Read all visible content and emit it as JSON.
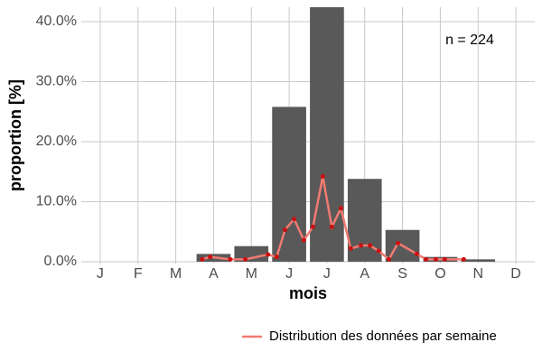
{
  "chart_data": {
    "type": "bar",
    "xlabel": "mois",
    "ylabel": "proportion [%]",
    "annotation": "n = 224",
    "categories": [
      "J",
      "F",
      "M",
      "A",
      "M",
      "J",
      "J",
      "A",
      "S",
      "O",
      "N",
      "D"
    ],
    "values": [
      0,
      0,
      0,
      1.3,
      2.6,
      25.8,
      42.5,
      13.8,
      5.3,
      0.8,
      0.4,
      0
    ],
    "color": "#595959",
    "xlim": [
      0.5,
      12.5
    ],
    "ylim": [
      -0.3,
      42.4
    ],
    "yticks": [
      {
        "value": 0,
        "label": "0.0%"
      },
      {
        "value": 10,
        "label": "10.0%"
      },
      {
        "value": 20,
        "label": "20.0%"
      },
      {
        "value": 30,
        "label": "30.0%"
      },
      {
        "value": 40,
        "label": "40.0%"
      }
    ],
    "grid": true,
    "legend": "bottom-right",
    "line": {
      "type": "line",
      "name": "Distribution des données par semaine",
      "color": "#f07b72",
      "point_color": "#cc1010",
      "x": [
        3.7,
        3.91,
        4.44,
        4.84,
        5.44,
        5.67,
        5.89,
        6.13,
        6.39,
        6.63,
        6.89,
        7.13,
        7.37,
        7.63,
        7.9,
        8.14,
        8.37,
        8.64,
        8.88,
        9.38,
        9.62,
        9.88,
        10.12,
        10.62
      ],
      "values": [
        0.4,
        0.8,
        0.4,
        0.4,
        1.2,
        0.8,
        5.3,
        7.1,
        3.6,
        5.8,
        14.2,
        5.8,
        8.9,
        2.2,
        2.7,
        2.7,
        1.8,
        0.4,
        3.1,
        1.3,
        0.4,
        0.4,
        0.4,
        0.4
      ]
    }
  }
}
